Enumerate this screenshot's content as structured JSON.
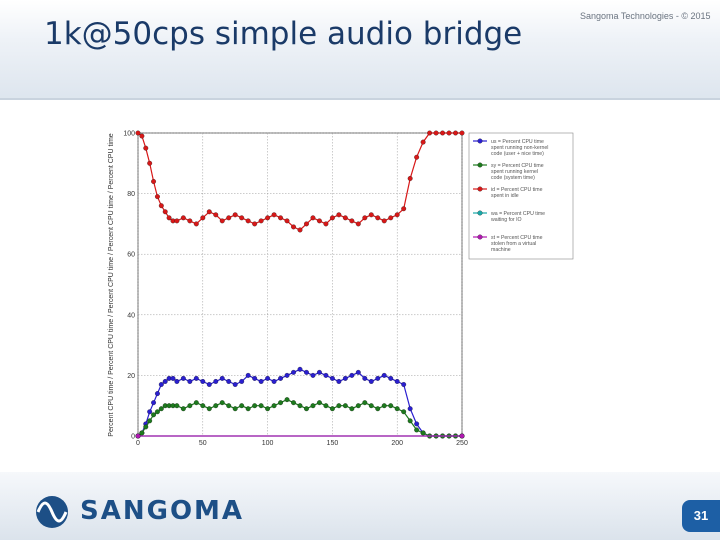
{
  "slide": {
    "title": "1k@50cps simple audio bridge",
    "copyright": "Sangoma Technologies - © 2015",
    "brand": "SANGOMA",
    "page_number": "31"
  },
  "colors": {
    "title": "#1a3a68",
    "brand": "#1d4f86",
    "badge": "#1d5fa5"
  },
  "chart_data": {
    "type": "line",
    "title": "",
    "xlabel": "",
    "ylabel": "Percent CPU time / Percent CPU time / Percent CPU time / Percent CPU time / Percent CPU time",
    "xlim": [
      0,
      250
    ],
    "ylim": [
      0,
      100
    ],
    "x_ticks": [
      0,
      50,
      100,
      150,
      200,
      250
    ],
    "y_ticks": [
      0,
      20,
      40,
      60,
      80,
      100
    ],
    "grid": true,
    "legend_position": "right-outside",
    "series": [
      {
        "name": "us = Percent CPU time spent running non-kernel code (user + nice time)",
        "color": "#2a1fd0",
        "x": [
          0,
          3,
          6,
          9,
          12,
          15,
          18,
          21,
          24,
          27,
          30,
          35,
          40,
          45,
          50,
          55,
          60,
          65,
          70,
          75,
          80,
          85,
          90,
          95,
          100,
          105,
          110,
          115,
          120,
          125,
          130,
          135,
          140,
          145,
          150,
          155,
          160,
          165,
          170,
          175,
          180,
          185,
          190,
          195,
          200,
          205,
          210,
          215,
          220,
          225,
          230,
          235,
          240,
          245,
          250
        ],
        "values": [
          0,
          1,
          4,
          8,
          11,
          14,
          17,
          18,
          19,
          19,
          18,
          19,
          18,
          19,
          18,
          17,
          18,
          19,
          18,
          17,
          18,
          20,
          19,
          18,
          19,
          18,
          19,
          20,
          21,
          22,
          21,
          20,
          21,
          20,
          19,
          18,
          19,
          20,
          21,
          19,
          18,
          19,
          20,
          19,
          18,
          17,
          9,
          4,
          1,
          0,
          0,
          0,
          0,
          0,
          0
        ]
      },
      {
        "name": "sy = Percent CPU time spent running kernel code (system time)",
        "color": "#1d7a1d",
        "x": [
          0,
          3,
          6,
          9,
          12,
          15,
          18,
          21,
          24,
          27,
          30,
          35,
          40,
          45,
          50,
          55,
          60,
          65,
          70,
          75,
          80,
          85,
          90,
          95,
          100,
          105,
          110,
          115,
          120,
          125,
          130,
          135,
          140,
          145,
          150,
          155,
          160,
          165,
          170,
          175,
          180,
          185,
          190,
          195,
          200,
          205,
          210,
          215,
          220,
          225,
          230,
          235,
          240,
          245,
          250
        ],
        "values": [
          0,
          1,
          3,
          5,
          7,
          8,
          9,
          10,
          10,
          10,
          10,
          9,
          10,
          11,
          10,
          9,
          10,
          11,
          10,
          9,
          10,
          9,
          10,
          10,
          9,
          10,
          11,
          12,
          11,
          10,
          9,
          10,
          11,
          10,
          9,
          10,
          10,
          9,
          10,
          11,
          10,
          9,
          10,
          10,
          9,
          8,
          5,
          2,
          1,
          0,
          0,
          0,
          0,
          0,
          0
        ]
      },
      {
        "name": "id = Percent CPU time spent in idle",
        "color": "#d81818",
        "x": [
          0,
          3,
          6,
          9,
          12,
          15,
          18,
          21,
          24,
          27,
          30,
          35,
          40,
          45,
          50,
          55,
          60,
          65,
          70,
          75,
          80,
          85,
          90,
          95,
          100,
          105,
          110,
          115,
          120,
          125,
          130,
          135,
          140,
          145,
          150,
          155,
          160,
          165,
          170,
          175,
          180,
          185,
          190,
          195,
          200,
          205,
          210,
          215,
          220,
          225,
          230,
          235,
          240,
          245,
          250
        ],
        "values": [
          100,
          99,
          95,
          90,
          84,
          79,
          76,
          74,
          72,
          71,
          71,
          72,
          71,
          70,
          72,
          74,
          73,
          71,
          72,
          73,
          72,
          71,
          70,
          71,
          72,
          73,
          72,
          71,
          69,
          68,
          70,
          72,
          71,
          70,
          72,
          73,
          72,
          71,
          70,
          72,
          73,
          72,
          71,
          72,
          73,
          75,
          85,
          92,
          97,
          100,
          100,
          100,
          100,
          100,
          100
        ]
      },
      {
        "name": "wa = Percent CPU time waiting for IO",
        "color": "#18a8a8",
        "x": [
          0,
          250
        ],
        "values": [
          0,
          0
        ]
      },
      {
        "name": "st = Percent CPU time stolen from a virtual machine",
        "color": "#b018b0",
        "x": [
          0,
          250
        ],
        "values": [
          0,
          0
        ]
      }
    ]
  }
}
